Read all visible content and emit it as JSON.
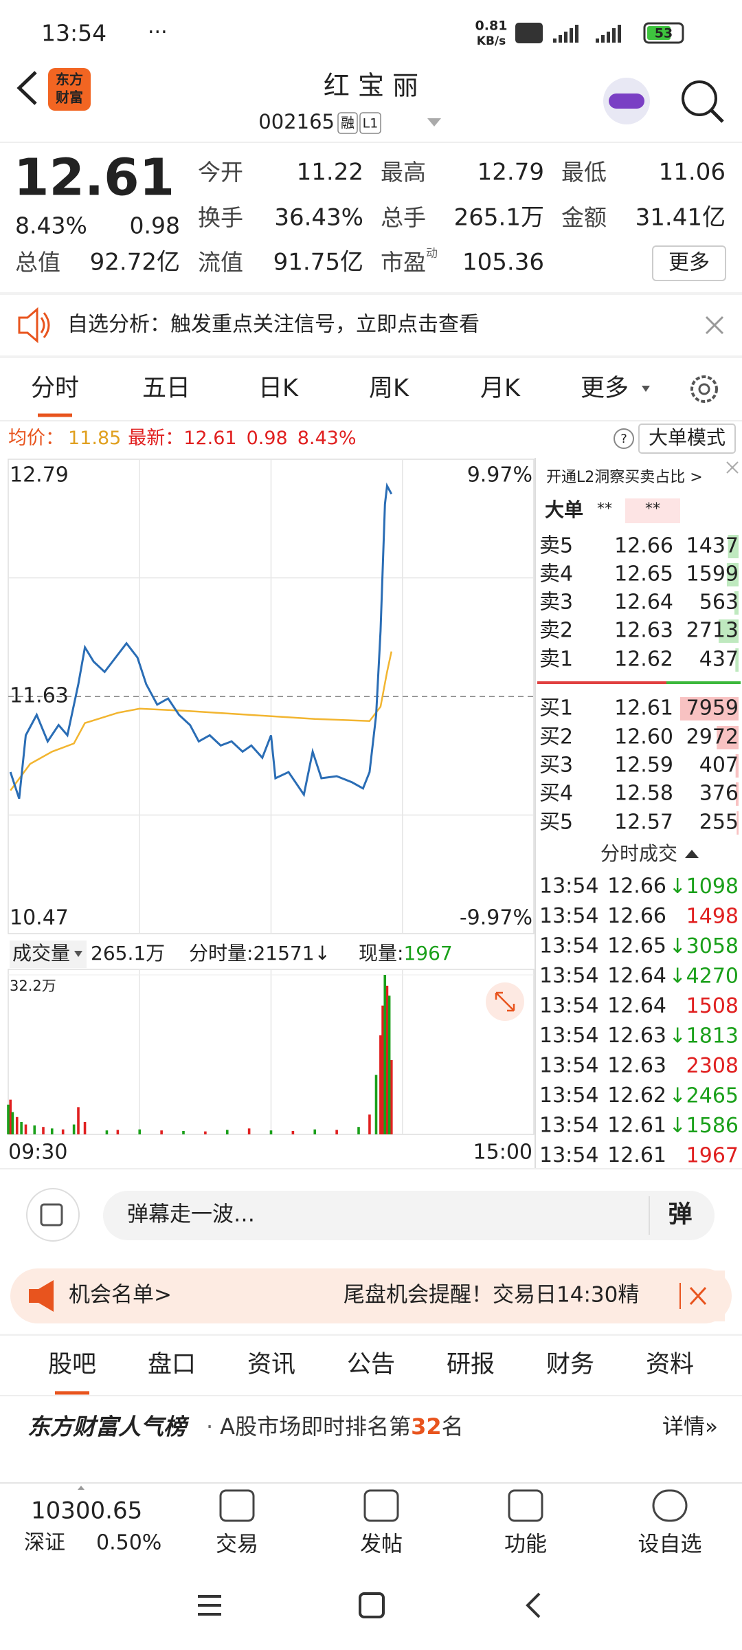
{
  "status_bar": {
    "time": "13:54",
    "net_speed": "0.81",
    "net_unit": "KB/s",
    "battery": "53"
  },
  "header": {
    "logo": [
      "东方",
      "财富"
    ],
    "title": "红 宝 丽",
    "code": "002165",
    "badge": "融",
    "level": "L1"
  },
  "quote": {
    "price": "12.61",
    "change_pct": "8.43%",
    "change": "0.98",
    "fields": [
      {
        "label": "今开",
        "value": "11.22"
      },
      {
        "label": "最高",
        "value": "12.79"
      },
      {
        "label": "最低",
        "value": "11.06"
      },
      {
        "label": "换手",
        "value": "36.43%"
      },
      {
        "label": "总手",
        "value": "265.1万"
      },
      {
        "label": "金额",
        "value": "31.41亿"
      },
      {
        "label": "总值",
        "value": "92.72亿"
      },
      {
        "label": "流值",
        "value": "91.75亿"
      },
      {
        "label": "市盈",
        "sup": "动",
        "value": "105.36"
      }
    ],
    "more": "更多"
  },
  "notice": "自选分析：触发重点关注信号，立即点击查看",
  "tabs": [
    "分时",
    "五日",
    "日K",
    "周K",
    "月K",
    "更多"
  ],
  "info": {
    "avg_label": "均价：",
    "avg": "11.85",
    "last_label": "最新：",
    "last": "12.61",
    "change": "0.98",
    "change_pct": "8.43%",
    "mode": "大单模式"
  },
  "chart": {
    "ylim": [
      10.47,
      12.79
    ],
    "mid": 11.63,
    "upper_pct": "9.97%",
    "lower_pct": "-9.97%",
    "xlim": [
      0,
      240
    ],
    "x": [
      1,
      5,
      8,
      13,
      18,
      23,
      27,
      32,
      35,
      39,
      44,
      49,
      54,
      59,
      63,
      68,
      73,
      78,
      83,
      87,
      92,
      97,
      102,
      107,
      111,
      116,
      120,
      122,
      128,
      135,
      139,
      143,
      150,
      157,
      162,
      165,
      168,
      170,
      172,
      173,
      175
    ],
    "price": [
      11.26,
      11.13,
      11.44,
      11.54,
      11.41,
      11.49,
      11.44,
      11.69,
      11.87,
      11.8,
      11.75,
      11.82,
      11.89,
      11.82,
      11.69,
      11.59,
      11.62,
      11.54,
      11.49,
      11.41,
      11.44,
      11.39,
      11.41,
      11.36,
      11.39,
      11.33,
      11.44,
      11.23,
      11.26,
      11.15,
      11.36,
      11.23,
      11.24,
      11.21,
      11.18,
      11.26,
      11.54,
      11.95,
      12.57,
      12.66,
      12.62
    ],
    "avg_x": [
      1,
      10,
      20,
      30,
      35,
      50,
      60,
      80,
      110,
      140,
      165,
      170,
      173,
      175
    ],
    "avg": [
      11.17,
      11.3,
      11.36,
      11.4,
      11.5,
      11.55,
      11.57,
      11.56,
      11.54,
      11.52,
      11.51,
      11.58,
      11.75,
      11.85
    ],
    "volume": {
      "ytick": {
        "value": 322000,
        "label": "32.2万"
      },
      "up": {
        "color": "#e02020",
        "x": [
          1,
          4,
          8,
          16,
          25,
          32,
          35,
          50,
          70,
          90,
          110,
          130,
          150,
          165,
          170,
          171,
          173,
          175
        ],
        "values": [
          70000,
          35000,
          20000,
          15000,
          10000,
          55000,
          25000,
          9000,
          8000,
          6000,
          12000,
          7000,
          9000,
          40000,
          200000,
          260000,
          300000,
          150000
        ]
      },
      "down": {
        "color": "#1aa01a",
        "x": [
          0,
          2,
          6,
          12,
          20,
          30,
          45,
          60,
          80,
          100,
          120,
          140,
          160,
          168,
          172,
          174
        ],
        "values": [
          60000,
          45000,
          25000,
          18000,
          12000,
          20000,
          8000,
          10000,
          7000,
          9000,
          8000,
          10000,
          15000,
          120000,
          322000,
          280000
        ]
      }
    },
    "x_start": "09:30",
    "x_end": "15:00"
  },
  "volume_header": {
    "label": "成交量",
    "total": "265.1万",
    "minute_label": "分时量:",
    "minute": "21571",
    "arrow": "↓",
    "now_label": "现量:",
    "now": "1967"
  },
  "order_book": {
    "promo": "开通L2洞察买卖占比 >",
    "big": "大单",
    "stars": [
      "**",
      "**"
    ],
    "asks": [
      {
        "label": "卖5",
        "price": "12.66",
        "volume": "1437"
      },
      {
        "label": "卖4",
        "price": "12.65",
        "volume": "1599"
      },
      {
        "label": "卖3",
        "price": "12.64",
        "volume": "563"
      },
      {
        "label": "卖2",
        "price": "12.63",
        "volume": "2713"
      },
      {
        "label": "卖1",
        "price": "12.62",
        "volume": "437"
      }
    ],
    "bids": [
      {
        "label": "买1",
        "price": "12.61",
        "volume": "7959"
      },
      {
        "label": "买2",
        "price": "12.60",
        "volume": "2972"
      },
      {
        "label": "买3",
        "price": "12.59",
        "volume": "407"
      },
      {
        "label": "买4",
        "price": "12.58",
        "volume": "376"
      },
      {
        "label": "买5",
        "price": "12.57",
        "volume": "255"
      }
    ]
  },
  "trades": {
    "title": "分时成交",
    "rows": [
      {
        "time": "13:54",
        "price": "12.66",
        "arrow": "↓",
        "volume": "1098"
      },
      {
        "time": "13:54",
        "price": "12.66",
        "volume": "1498"
      },
      {
        "time": "13:54",
        "price": "12.65",
        "arrow": "↓",
        "volume": "3058"
      },
      {
        "time": "13:54",
        "price": "12.64",
        "arrow": "↓",
        "volume": "4270"
      },
      {
        "time": "13:54",
        "price": "12.64",
        "volume": "1508"
      },
      {
        "time": "13:54",
        "price": "12.63",
        "arrow": "↓",
        "volume": "1813"
      },
      {
        "time": "13:54",
        "price": "12.63",
        "volume": "2308"
      },
      {
        "time": "13:54",
        "price": "12.62",
        "arrow": "↓",
        "volume": "2465"
      },
      {
        "time": "13:54",
        "price": "12.61",
        "arrow": "↓",
        "volume": "1586"
      },
      {
        "time": "13:54",
        "price": "12.61",
        "volume": "1967"
      }
    ]
  },
  "comment": {
    "placeholder": "弹幕走一波…",
    "button": "弹"
  },
  "promo_banner": {
    "left": "机会名单>",
    "right": "尾盘机会提醒！交易日14:30精"
  },
  "sub_tabs": [
    "股吧",
    "盘口",
    "资讯",
    "公告",
    "研报",
    "财务",
    "资料"
  ],
  "rank": {
    "brand": "东方财富人气榜",
    "dot": "·",
    "prefix": "A股市场即时排名第",
    "rank": "32",
    "suffix": "名",
    "link": "详情»"
  },
  "bottom_bar": {
    "index_value": "10300.65",
    "index_name": "深证",
    "index_change": "0.50%",
    "items": [
      "交易",
      "发帖",
      "功能",
      "设自选"
    ]
  }
}
